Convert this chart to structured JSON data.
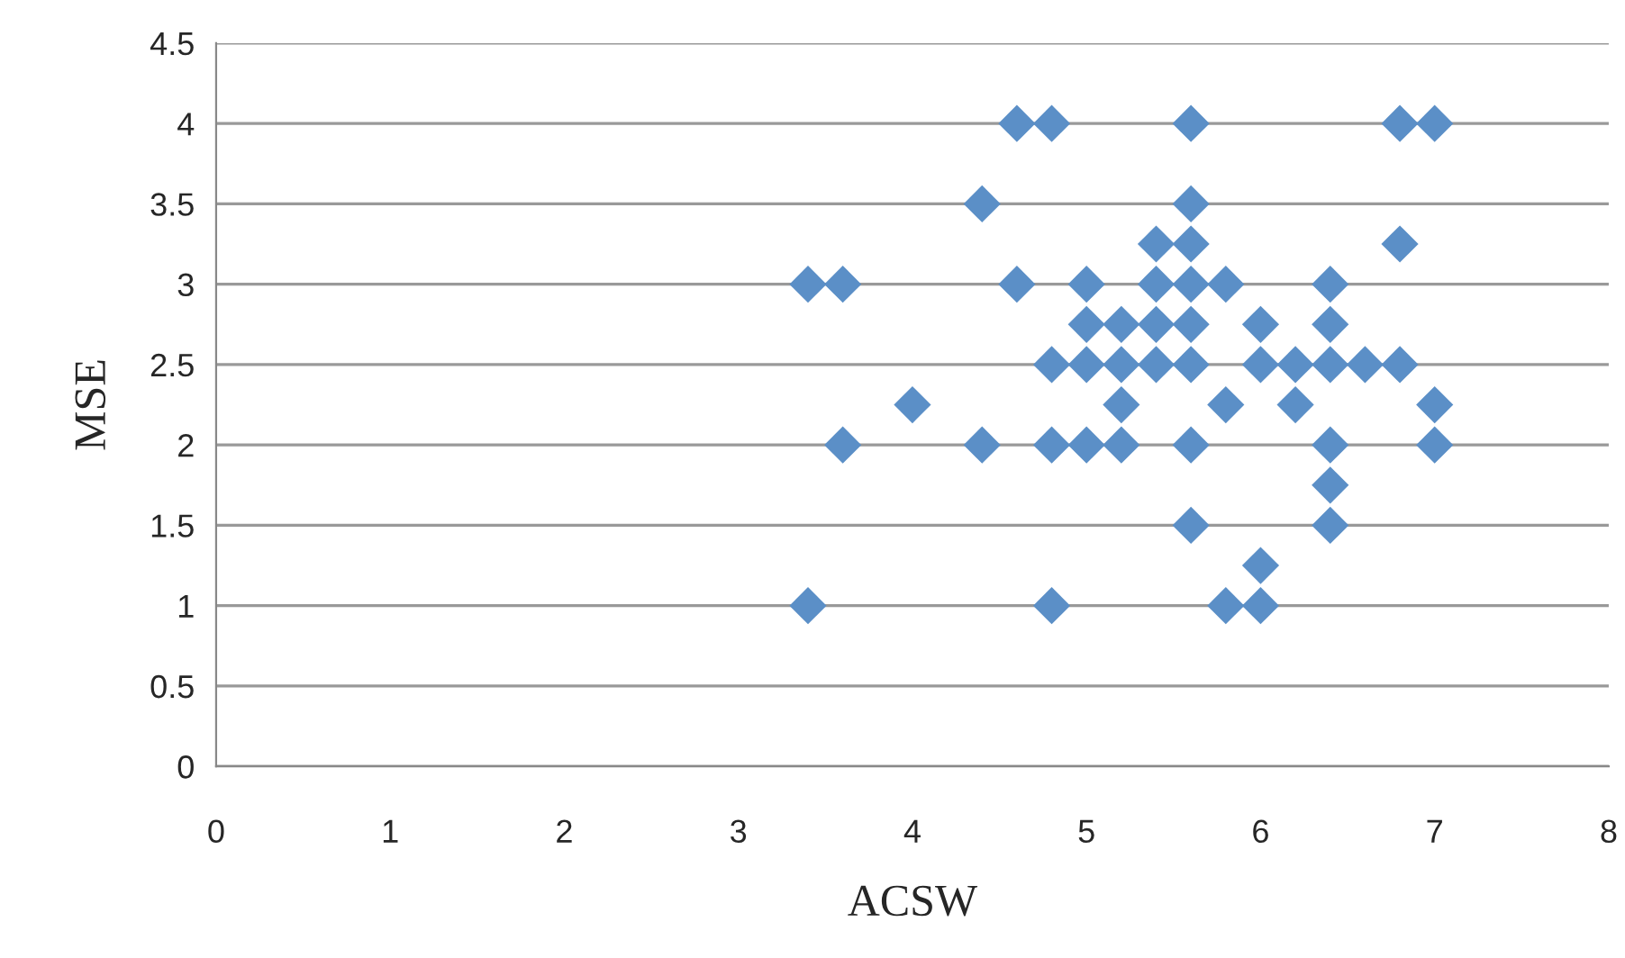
{
  "chart_data": {
    "type": "scatter",
    "xlabel": "ACSW",
    "ylabel": "MSE",
    "x": [
      4.6,
      4.8,
      5.6,
      6.8,
      7.0,
      4.4,
      5.6,
      5.4,
      5.6,
      6.8,
      3.4,
      3.6,
      4.6,
      5.0,
      5.4,
      5.6,
      5.8,
      6.4,
      5.0,
      5.2,
      5.4,
      5.6,
      6.0,
      6.4,
      4.8,
      5.0,
      5.2,
      5.4,
      5.6,
      6.0,
      6.2,
      6.4,
      6.6,
      6.8,
      4.0,
      5.2,
      5.8,
      6.2,
      7.0,
      3.6,
      4.4,
      4.8,
      5.0,
      5.2,
      5.6,
      6.4,
      7.0,
      6.4,
      5.6,
      6.4,
      6.0,
      3.4,
      4.8,
      5.8,
      6.0
    ],
    "values": [
      4,
      4,
      4,
      4,
      4,
      3.5,
      3.5,
      3.25,
      3.25,
      3.25,
      3,
      3,
      3,
      3,
      3,
      3,
      3,
      3,
      2.75,
      2.75,
      2.75,
      2.75,
      2.75,
      2.75,
      2.5,
      2.5,
      2.5,
      2.5,
      2.5,
      2.5,
      2.5,
      2.5,
      2.5,
      2.5,
      2.25,
      2.25,
      2.25,
      2.25,
      2.25,
      2,
      2,
      2,
      2,
      2,
      2,
      2,
      2,
      1.75,
      1.5,
      1.5,
      1.25,
      1,
      1,
      1,
      1
    ],
    "color": "#5b8fc7",
    "marker": "diamond",
    "xlim": [
      0,
      8
    ],
    "xticks": [
      0,
      1,
      2,
      3,
      4,
      5,
      6,
      7,
      8
    ],
    "ylim": [
      0,
      4.5
    ],
    "yticks": [
      0,
      0.5,
      1,
      1.5,
      2,
      2.5,
      3,
      3.5,
      4,
      4.5
    ],
    "grid": "y",
    "legend": false
  }
}
